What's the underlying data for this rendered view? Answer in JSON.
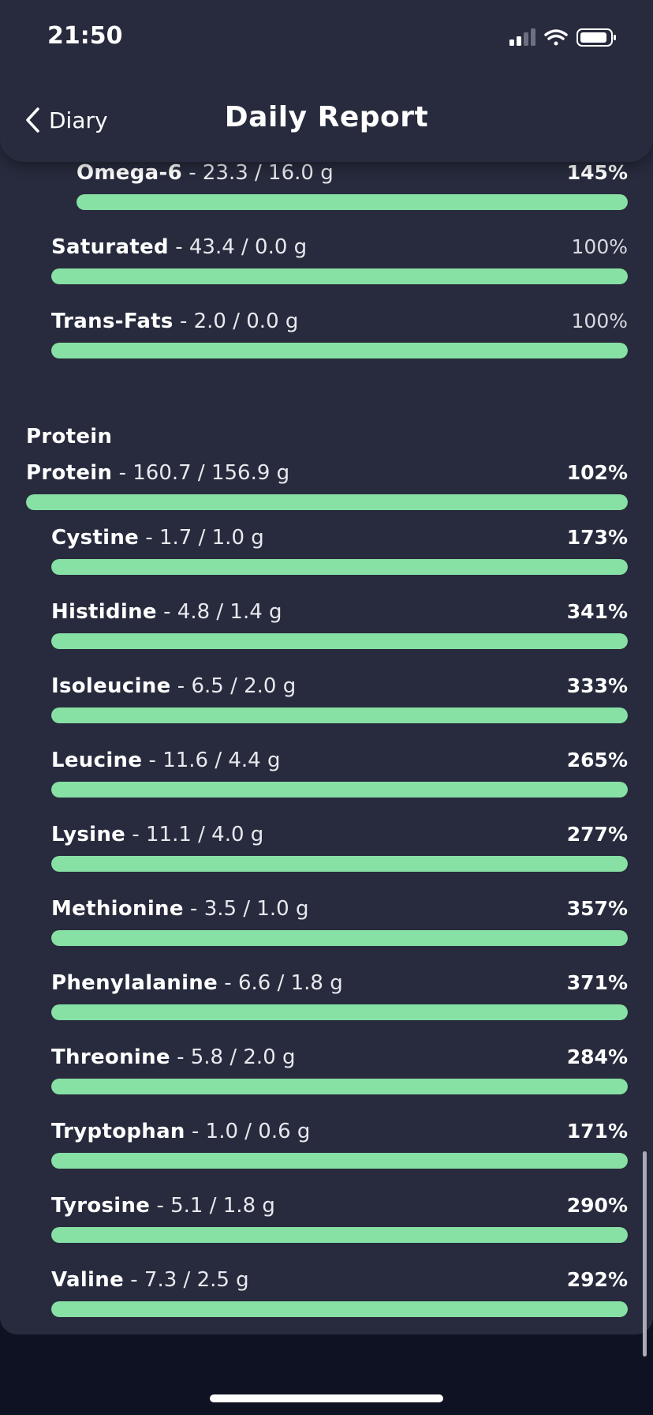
{
  "status_bar": {
    "time": "21:50"
  },
  "header": {
    "back_label": "Diary",
    "title": "Daily Report"
  },
  "colors": {
    "bar_fill": "#87e0a4",
    "background": "#272b3d"
  },
  "rows_top": [
    {
      "name": "Omega-6",
      "amount": " - 23.3 / 16.0 g",
      "percent": "145%",
      "fill": 1.0,
      "indent": 2,
      "bold_pct": true
    },
    {
      "name": "Saturated",
      "amount": " - 43.4 / 0.0 g",
      "percent": "100%",
      "fill": 1.0,
      "indent": 1,
      "bold_pct": false
    },
    {
      "name": "Trans-Fats",
      "amount": " - 2.0 / 0.0 g",
      "percent": "100%",
      "fill": 1.0,
      "indent": 1,
      "bold_pct": false
    }
  ],
  "protein_section": {
    "title": "Protein",
    "total": {
      "name": "Protein",
      "amount": " - 160.7 / 156.9 g",
      "percent": "102%",
      "fill": 1.0
    },
    "items": [
      {
        "name": "Cystine",
        "amount": " - 1.7 / 1.0 g",
        "percent": "173%",
        "fill": 1.0
      },
      {
        "name": "Histidine",
        "amount": " - 4.8 / 1.4 g",
        "percent": "341%",
        "fill": 1.0
      },
      {
        "name": "Isoleucine",
        "amount": " - 6.5 / 2.0 g",
        "percent": "333%",
        "fill": 1.0
      },
      {
        "name": "Leucine",
        "amount": " - 11.6 / 4.4 g",
        "percent": "265%",
        "fill": 1.0
      },
      {
        "name": "Lysine",
        "amount": " - 11.1 / 4.0 g",
        "percent": "277%",
        "fill": 1.0
      },
      {
        "name": "Methionine",
        "amount": " - 3.5 / 1.0 g",
        "percent": "357%",
        "fill": 1.0
      },
      {
        "name": "Phenylalanine",
        "amount": " - 6.6 / 1.8 g",
        "percent": "371%",
        "fill": 1.0
      },
      {
        "name": "Threonine",
        "amount": " - 5.8 / 2.0 g",
        "percent": "284%",
        "fill": 1.0
      },
      {
        "name": "Tryptophan",
        "amount": " - 1.0 / 0.6 g",
        "percent": "171%",
        "fill": 1.0
      },
      {
        "name": "Tyrosine",
        "amount": " - 5.1 / 1.8 g",
        "percent": "290%",
        "fill": 1.0
      },
      {
        "name": "Valine",
        "amount": " - 7.3 / 2.5 g",
        "percent": "292%",
        "fill": 1.0
      }
    ]
  }
}
